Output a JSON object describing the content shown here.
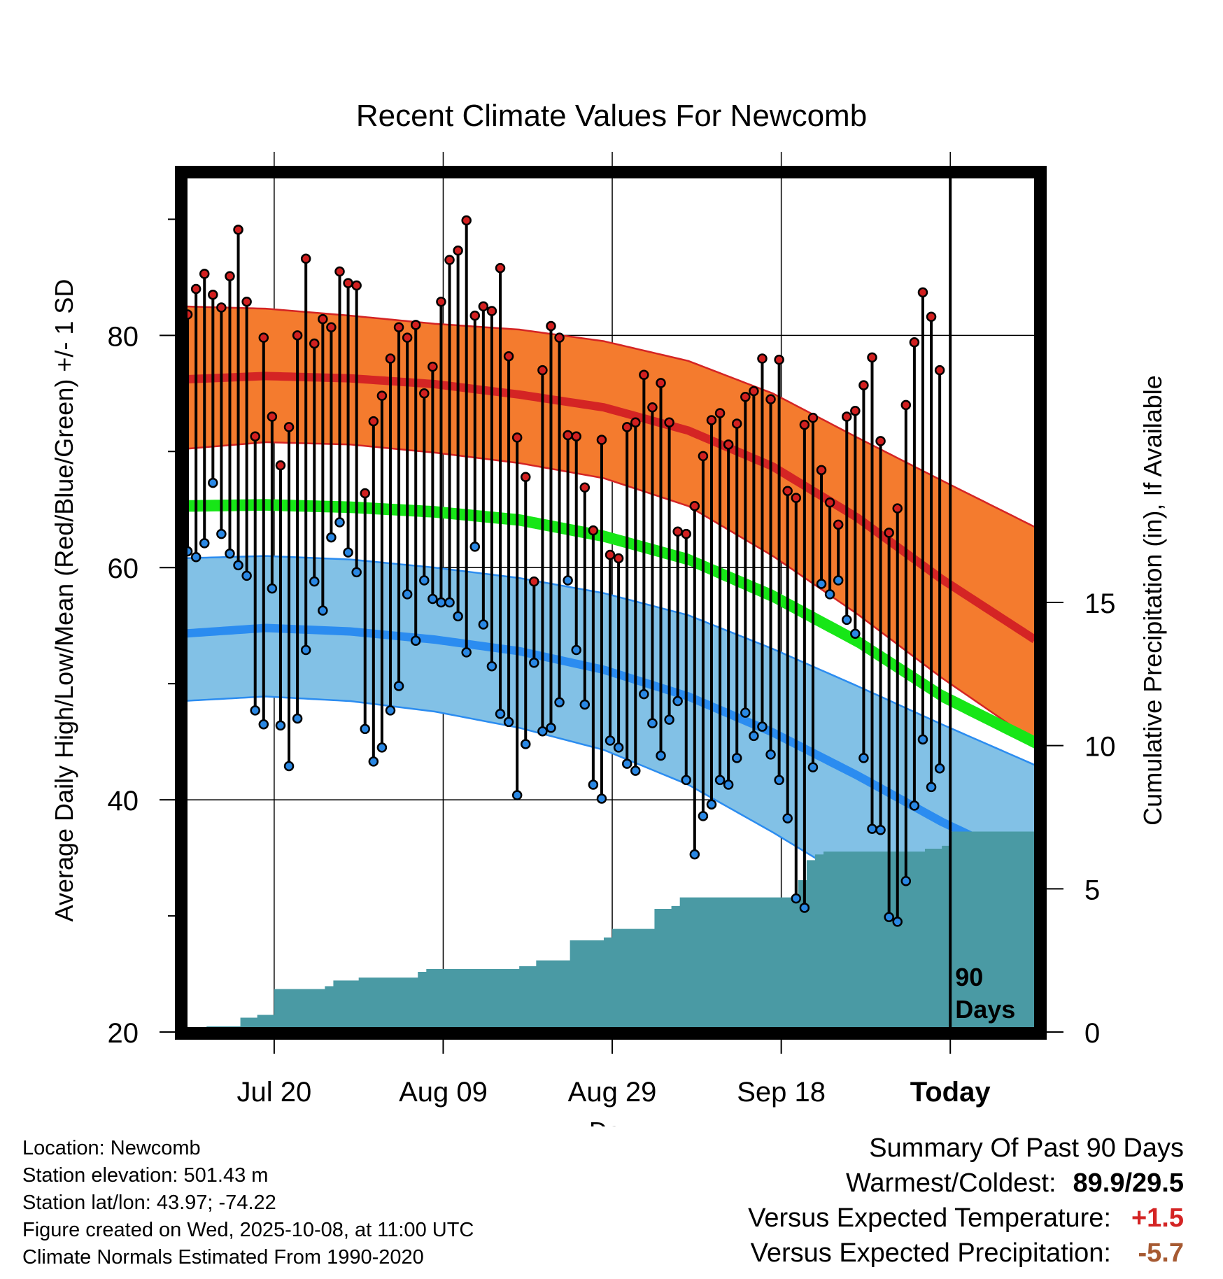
{
  "colors": {
    "high_band": "#f47b2e",
    "high_edge": "#d42424",
    "high_mean": "#d42424",
    "low_band": "#82c1e6",
    "low_edge": "#2b8cf0",
    "low_mean": "#2b8cf0",
    "mean_line": "#17e617",
    "precip": "#4a9aa4",
    "high_dot": "#d22020",
    "low_dot": "#2a88e4",
    "warm_value": "#d42424",
    "precip_value": "#a65a32"
  },
  "chart_data": {
    "type": "line",
    "title": "Recent Climate Values For Newcomb",
    "xlabel": "Day",
    "ylabel": "Average Daily High/Low/Mean (Red/Blue/Green) +/- 1 SD",
    "ylabel_right": "Cumulative Precipitation (in), If Available",
    "ylim": [
      20,
      94
    ],
    "y2lim": [
      0,
      30
    ],
    "xlim_days": [
      0,
      101
    ],
    "today_day": 91,
    "x_ticks": [
      {
        "day": 11,
        "label": "Jul 20"
      },
      {
        "day": 31,
        "label": "Aug 09"
      },
      {
        "day": 51,
        "label": "Aug 29"
      },
      {
        "day": 71,
        "label": "Sep 18"
      },
      {
        "day": 91,
        "label": "Today"
      }
    ],
    "y_ticks": [
      20,
      40,
      60,
      80
    ],
    "y_minor_ticks": [
      30,
      50,
      70,
      90
    ],
    "y2_ticks": [
      0,
      5,
      10,
      15
    ],
    "period_label": "90\nDays",
    "normals": {
      "days": [
        0,
        10,
        20,
        30,
        40,
        50,
        60,
        70,
        80,
        90,
        101
      ],
      "high_upper": [
        82.5,
        82.3,
        81.7,
        81.0,
        80.5,
        79.5,
        77.8,
        75.0,
        71.2,
        67.5,
        63.5
      ],
      "high_mean": [
        76.2,
        76.5,
        76.3,
        75.8,
        74.9,
        73.8,
        71.8,
        68.7,
        64.3,
        59.0,
        53.8
      ],
      "high_lower": [
        70.2,
        70.8,
        70.6,
        69.9,
        69.0,
        67.7,
        65.3,
        61.0,
        56.0,
        50.5,
        45.0
      ],
      "mean_upper": [
        65.8,
        65.9,
        65.7,
        65.3,
        64.6,
        63.2,
        61.2,
        58.1,
        54.2,
        49.5,
        45.5
      ],
      "mean_lower": [
        64.8,
        64.9,
        64.7,
        64.3,
        63.6,
        62.2,
        60.2,
        57.0,
        53.1,
        48.4,
        44.4
      ],
      "low_upper": [
        60.8,
        61.0,
        60.7,
        60.0,
        59.1,
        57.8,
        55.9,
        53.0,
        49.8,
        46.5,
        43.0
      ],
      "low_mean": [
        54.3,
        54.8,
        54.5,
        53.8,
        52.8,
        51.2,
        48.9,
        45.8,
        42.1,
        38.1,
        34.3
      ],
      "low_lower": [
        48.5,
        48.9,
        48.5,
        47.6,
        46.2,
        44.3,
        41.3,
        37.2,
        32.8,
        28.5,
        24.5
      ]
    },
    "daily": {
      "start_day": 1,
      "high": [
        81.8,
        84.0,
        85.3,
        83.5,
        82.4,
        85.1,
        89.1,
        82.9,
        71.3,
        79.8,
        73.0,
        68.8,
        72.1,
        80.0,
        86.6,
        79.3,
        81.4,
        80.7,
        85.5,
        84.5,
        84.3,
        66.4,
        72.6,
        74.8,
        78.0,
        80.7,
        79.8,
        80.9,
        75.0,
        77.3,
        82.9,
        86.5,
        87.3,
        89.9,
        81.7,
        82.5,
        82.1,
        85.8,
        78.2,
        71.2,
        67.8,
        58.8,
        77.0,
        80.8,
        79.8,
        71.4,
        71.3,
        66.9,
        63.2,
        71.0,
        61.1,
        60.8,
        72.1,
        72.5,
        76.6,
        73.8,
        75.9,
        72.5,
        63.1,
        62.9,
        65.3,
        69.6,
        72.7,
        73.3,
        70.6,
        72.4,
        74.7,
        75.2,
        78.0,
        74.5,
        77.9,
        66.6,
        66.0,
        72.3,
        72.9,
        68.4,
        65.6,
        63.7,
        73.0,
        73.5,
        75.7,
        78.1,
        70.9,
        63.0,
        65.1,
        74.0,
        79.4,
        83.7,
        81.6,
        77.0
      ],
      "low": [
        61.4,
        60.9,
        62.1,
        67.3,
        62.9,
        61.2,
        60.2,
        59.3,
        47.7,
        46.5,
        58.2,
        46.4,
        42.9,
        47.0,
        52.9,
        58.8,
        56.3,
        62.6,
        63.9,
        61.3,
        59.6,
        46.1,
        43.3,
        44.5,
        47.7,
        49.8,
        57.7,
        53.7,
        58.9,
        57.3,
        57.0,
        57.0,
        55.8,
        52.7,
        61.8,
        55.1,
        51.5,
        47.4,
        46.7,
        40.4,
        44.8,
        51.8,
        45.9,
        46.2,
        48.4,
        58.9,
        52.9,
        48.2,
        41.3,
        40.1,
        45.1,
        44.5,
        43.1,
        42.5,
        49.1,
        46.6,
        43.8,
        46.9,
        48.5,
        41.7,
        35.3,
        38.6,
        39.6,
        41.7,
        41.3,
        43.6,
        47.5,
        45.5,
        46.3,
        43.9,
        41.7,
        38.4,
        31.5,
        30.7,
        42.8,
        58.6,
        57.7,
        58.9,
        55.5,
        54.3,
        43.6,
        37.5,
        37.4,
        29.9,
        29.5,
        33.0,
        39.5,
        45.2,
        41.1,
        42.7
      ]
    },
    "precip_cumulative": {
      "days": [
        0,
        1,
        3,
        6,
        7,
        9,
        10,
        11,
        13,
        17,
        18,
        20,
        21,
        26,
        28,
        29,
        33,
        40,
        42,
        45,
        46,
        50,
        51,
        55,
        56,
        58,
        59,
        70,
        73,
        74,
        75,
        76,
        87,
        88,
        89,
        90,
        91,
        101
      ],
      "values": [
        0.0,
        0.0,
        0.2,
        0.2,
        0.5,
        0.6,
        0.6,
        1.5,
        1.5,
        1.6,
        1.8,
        1.8,
        1.9,
        1.9,
        2.1,
        2.2,
        2.2,
        2.3,
        2.5,
        2.5,
        3.2,
        3.3,
        3.6,
        3.6,
        4.3,
        4.4,
        4.7,
        4.7,
        5.3,
        6.0,
        6.2,
        6.3,
        6.3,
        6.4,
        6.4,
        6.5,
        7.0,
        7.0
      ]
    }
  },
  "info": {
    "location": "Location: Newcomb",
    "elevation": "Station elevation: 501.43 m",
    "latlon": "Station lat/lon: 43.97; -74.22",
    "created": "Figure created on Wed, 2025-10-08, at 11:00 UTC",
    "normals": "Climate Normals Estimated From 1990-2020"
  },
  "summary": {
    "title": "Summary Of Past 90 Days",
    "warmest_label": "Warmest/Coldest:",
    "warmest_value": "89.9/29.5",
    "temp_label": "Versus Expected Temperature:",
    "temp_value": "+1.5",
    "precip_label": "Versus Expected Precipitation:",
    "precip_value": "-5.7"
  }
}
